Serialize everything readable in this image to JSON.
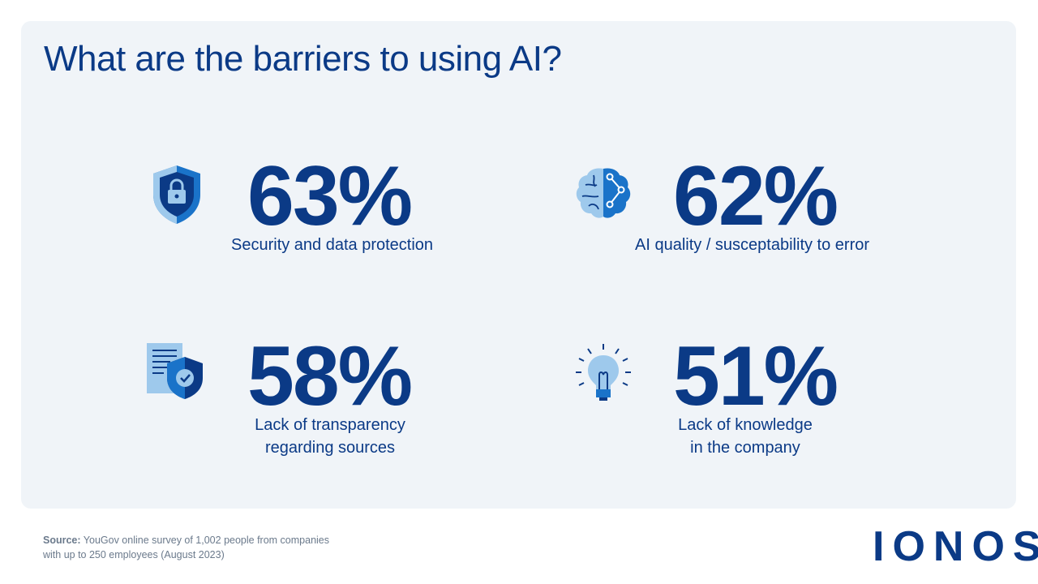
{
  "title": "What are the barriers to using AI?",
  "chart_data": {
    "type": "table",
    "title": "What are the barriers to using AI?",
    "unit": "%",
    "items": [
      {
        "label": "Security and data protection",
        "value": 63,
        "display": "63%",
        "icon": "shield-lock-icon"
      },
      {
        "label": "AI quality / susceptability to error",
        "value": 62,
        "display": "62%",
        "icon": "brain-circuit-icon"
      },
      {
        "label_lines": [
          "Lack of transparency",
          "regarding sources"
        ],
        "value": 58,
        "display": "58%",
        "icon": "document-shield-check-icon"
      },
      {
        "label_lines": [
          "Lack of knowledge",
          "in the company"
        ],
        "value": 51,
        "display": "51%",
        "icon": "lightbulb-icon"
      }
    ]
  },
  "source": {
    "label": "Source:",
    "line1": "YouGov online survey of 1,002 people from companies",
    "line2": "with up to 250 employees (August 2023)"
  },
  "logo": "IONOS",
  "colors": {
    "primary": "#0b3a86",
    "icon_mid": "#1a73c9",
    "icon_light": "#9ec9ec",
    "card_bg": "#f0f4f8"
  }
}
